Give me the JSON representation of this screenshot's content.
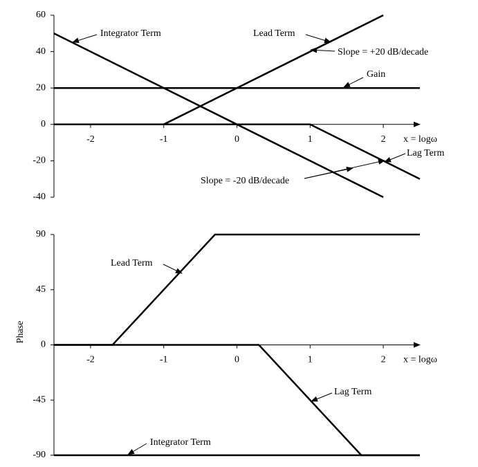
{
  "chart_data": [
    {
      "type": "line",
      "xlim": [
        -2.5,
        2.5
      ],
      "xticks": [
        -2,
        -1,
        0,
        1,
        2
      ],
      "xlabel": "x = logω",
      "ylim": [
        -40,
        60
      ],
      "yticks": [
        -40,
        -20,
        0,
        20,
        40,
        60
      ],
      "series": [
        {
          "name": "Integrator Term",
          "color": "#000000",
          "x": [
            -2.5,
            2
          ],
          "values": [
            50,
            -40
          ]
        },
        {
          "name": "Lead Term",
          "color": "#000000",
          "x": [
            -2.5,
            -1,
            2
          ],
          "values": [
            0,
            0,
            60
          ]
        },
        {
          "name": "Gain",
          "color": "#000000",
          "x": [
            -2.5,
            2.5
          ],
          "values": [
            20,
            20
          ]
        },
        {
          "name": "Lag Term",
          "color": "#000000",
          "x": [
            -2.5,
            1,
            2.5
          ],
          "values": [
            0,
            0,
            -30
          ]
        }
      ],
      "annotations": [
        "Integrator Term",
        "Lead Term",
        "Slope = +20 dB/decade",
        "Gain",
        "Lag Term",
        "Slope = -20 dB/decade"
      ]
    },
    {
      "type": "line",
      "ylabel": "Phase",
      "xlim": [
        -2.5,
        2.5
      ],
      "xticks": [
        -2,
        -1,
        0,
        1,
        2
      ],
      "xlabel": "x = logω",
      "ylim": [
        -90,
        90
      ],
      "yticks": [
        -90,
        -45,
        0,
        45,
        90
      ],
      "series": [
        {
          "name": "Lead Term",
          "color": "#000000",
          "x": [
            -2.5,
            -1.7,
            -0.3,
            2.5
          ],
          "values": [
            0,
            0,
            90,
            90
          ]
        },
        {
          "name": "Lag Term",
          "color": "#000000",
          "x": [
            -2.5,
            0.3,
            1.7,
            2.5
          ],
          "values": [
            0,
            0,
            -90,
            -90
          ]
        },
        {
          "name": "Integrator Term",
          "color": "#000000",
          "x": [
            -2.5,
            2.5
          ],
          "values": [
            -90,
            -90
          ]
        }
      ],
      "annotations": [
        "Lead Term",
        "Lag Term",
        "Integrator Term"
      ]
    }
  ]
}
